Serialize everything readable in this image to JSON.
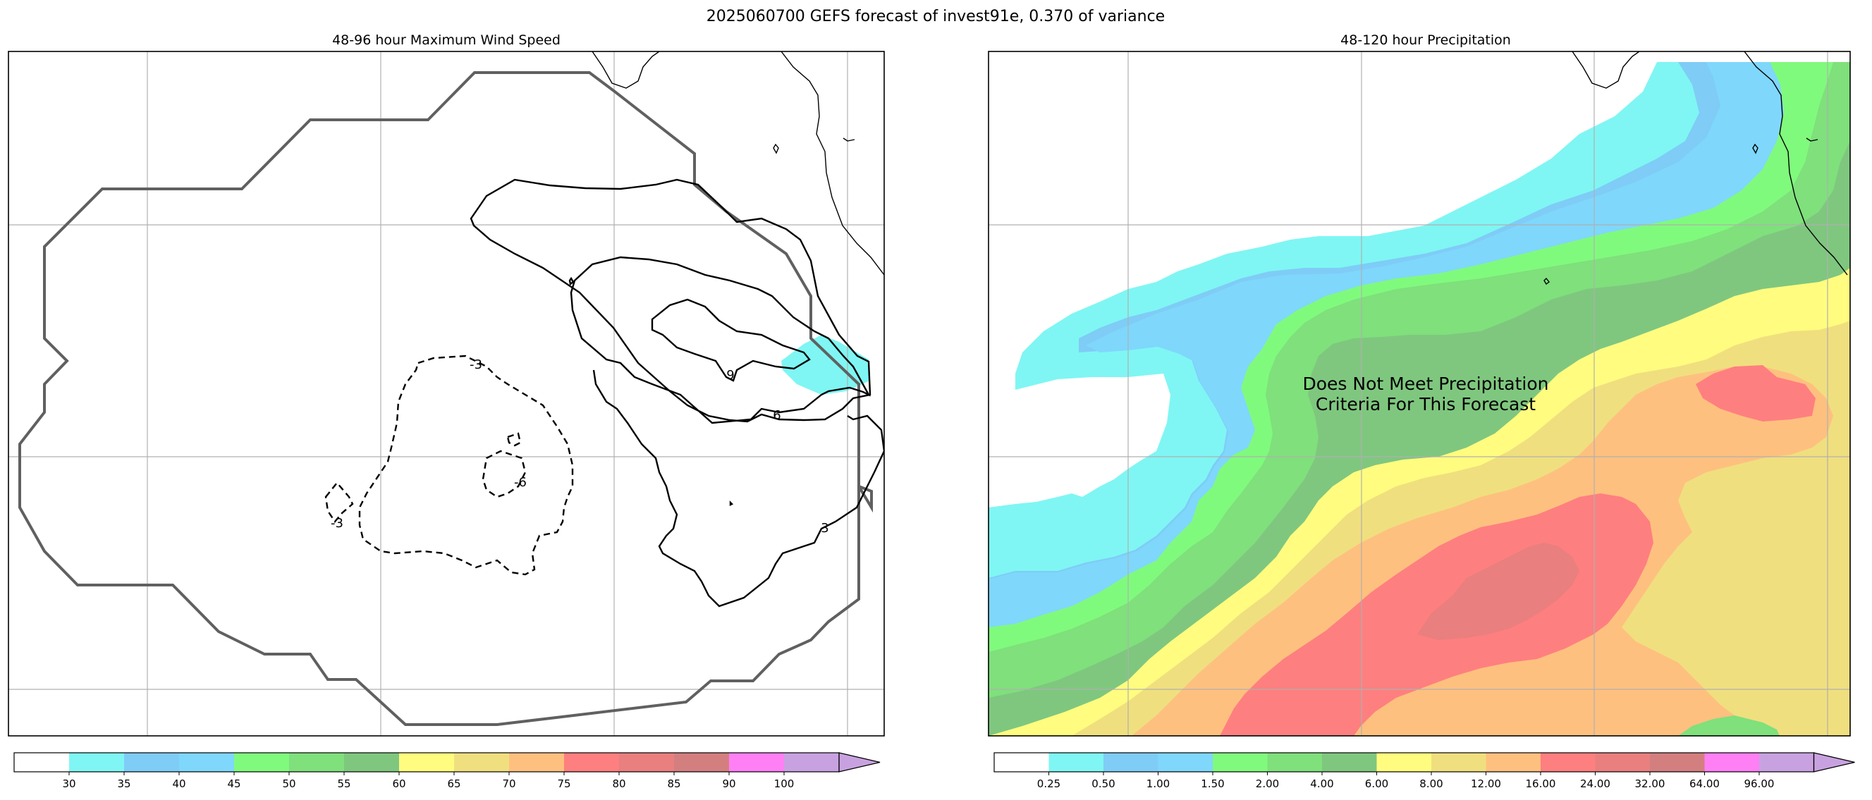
{
  "figure": {
    "suptitle": "2025060700 GEFS forecast of invest91e, 0.370 of variance"
  },
  "chart_data": [
    {
      "type": "contour-map",
      "title": "48-96 hour Maximum Wind Speed",
      "grid": true,
      "contour_levels": [
        -6,
        -3,
        3,
        6,
        9
      ],
      "contour_labels": [
        "-3",
        "-3",
        "-6",
        "9",
        "6",
        "3"
      ],
      "shaded_region": {
        "color": "#7ff6f3"
      },
      "colorbar": {
        "ticks": [
          "30",
          "35",
          "40",
          "45",
          "50",
          "55",
          "60",
          "65",
          "70",
          "75",
          "80",
          "85",
          "90",
          "100"
        ],
        "colors": [
          "#ffffff",
          "#7ff6f3",
          "#7fccf7",
          "#7fd7fc",
          "#80fa7d",
          "#7fe07c",
          "#7fc77f",
          "#fffc7f",
          "#f0df7f",
          "#fec07f",
          "#fe7f7f",
          "#e97f7f",
          "#d47f7f",
          "#ff7ff5",
          "#c8a2e0"
        ],
        "extend": "max"
      }
    },
    {
      "type": "filled-contour-map",
      "title": "48-120 hour Precipitation",
      "grid": true,
      "annotation": "Does Not Meet Precipitation\nCriteria For This Forecast",
      "colorbar": {
        "ticks": [
          "0.25",
          "0.50",
          "1.00",
          "1.50",
          "2.00",
          "4.00",
          "6.00",
          "8.00",
          "12.00",
          "16.00",
          "24.00",
          "32.00",
          "64.00",
          "96.00"
        ],
        "colors": [
          "#ffffff",
          "#7ff6f3",
          "#7fccf7",
          "#7fd7fc",
          "#80fa7d",
          "#7fe07c",
          "#7fc77f",
          "#fffc7f",
          "#f0df7f",
          "#fec07f",
          "#fe7f7f",
          "#e97f7f",
          "#d47f7f",
          "#ff7ff5",
          "#c8a2e0"
        ],
        "extend": "max"
      }
    }
  ]
}
